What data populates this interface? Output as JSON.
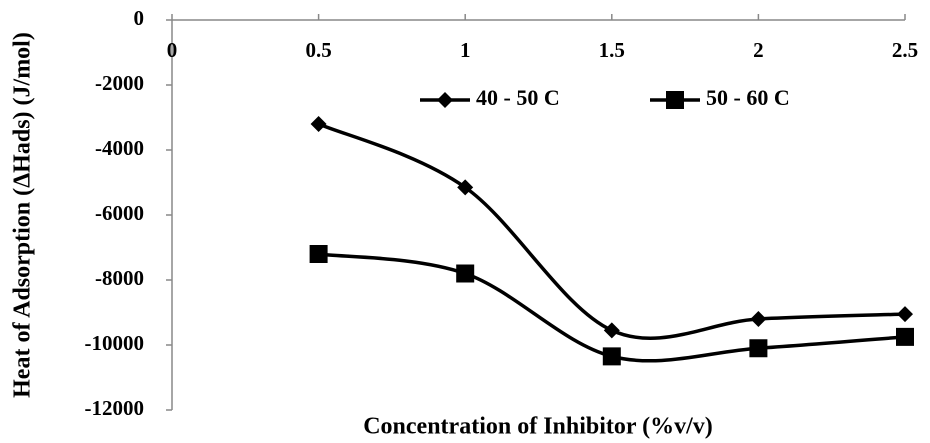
{
  "chart_data": {
    "type": "line",
    "x_label": "Concentration of Inhibitor (%v/v)",
    "y_label": "Heat of Adsorption (ΔHads) (J/mol)",
    "x": [
      0.5,
      1,
      1.5,
      2,
      2.5
    ],
    "series": [
      {
        "name": "40 - 50 C",
        "color": "#000000",
        "marker": "diamond",
        "values": [
          -3200,
          -5150,
          -9550,
          -9200,
          -9050
        ]
      },
      {
        "name": "50 - 60 C",
        "color": "#000000",
        "marker": "square",
        "values": [
          -7200,
          -7800,
          -10350,
          -10100,
          -9750
        ]
      }
    ],
    "xlim": [
      0,
      2.5
    ],
    "xticks": [
      0,
      0.5,
      1,
      1.5,
      2,
      2.5
    ],
    "ylim": [
      -12000,
      0
    ],
    "yticks": [
      -12000,
      -10000,
      -8000,
      -6000,
      -4000,
      -2000,
      0
    ],
    "smooth": true,
    "grid": false,
    "legend": "top"
  }
}
